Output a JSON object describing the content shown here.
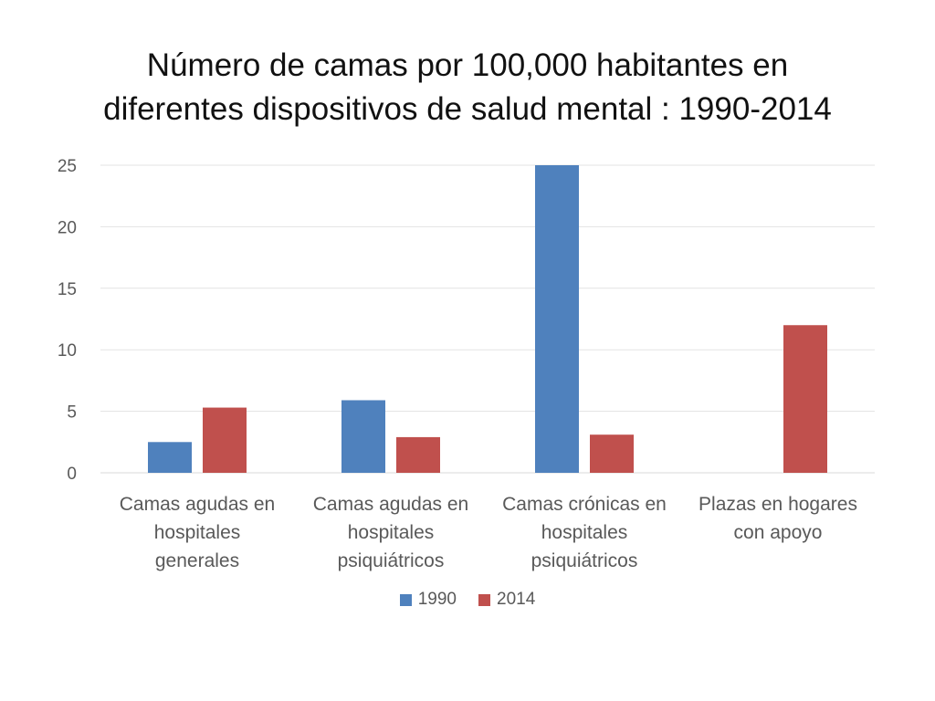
{
  "chart_data": {
    "type": "bar",
    "title_lines": [
      "Número de camas por 100,000 habitantes en",
      "diferentes dispositivos de salud mental : 1990-2014"
    ],
    "categories": [
      [
        "Camas agudas en",
        "hospitales",
        "generales"
      ],
      [
        "Camas agudas en",
        "hospitales",
        "psiquiátricos"
      ],
      [
        "Camas crónicas en",
        "hospitales",
        "psiquiátricos"
      ],
      [
        "Plazas en hogares",
        "con apoyo"
      ]
    ],
    "series": [
      {
        "name": "1990",
        "color": "#4f81bd",
        "values": [
          2.5,
          5.9,
          25,
          0
        ]
      },
      {
        "name": "2014",
        "color": "#c0504d",
        "values": [
          5.3,
          2.9,
          3.1,
          12
        ]
      }
    ],
    "yticks": [
      "0",
      "5",
      "10",
      "15",
      "20",
      "25"
    ],
    "ylim": [
      0,
      25
    ],
    "grid": true,
    "legend_position": "bottom"
  }
}
